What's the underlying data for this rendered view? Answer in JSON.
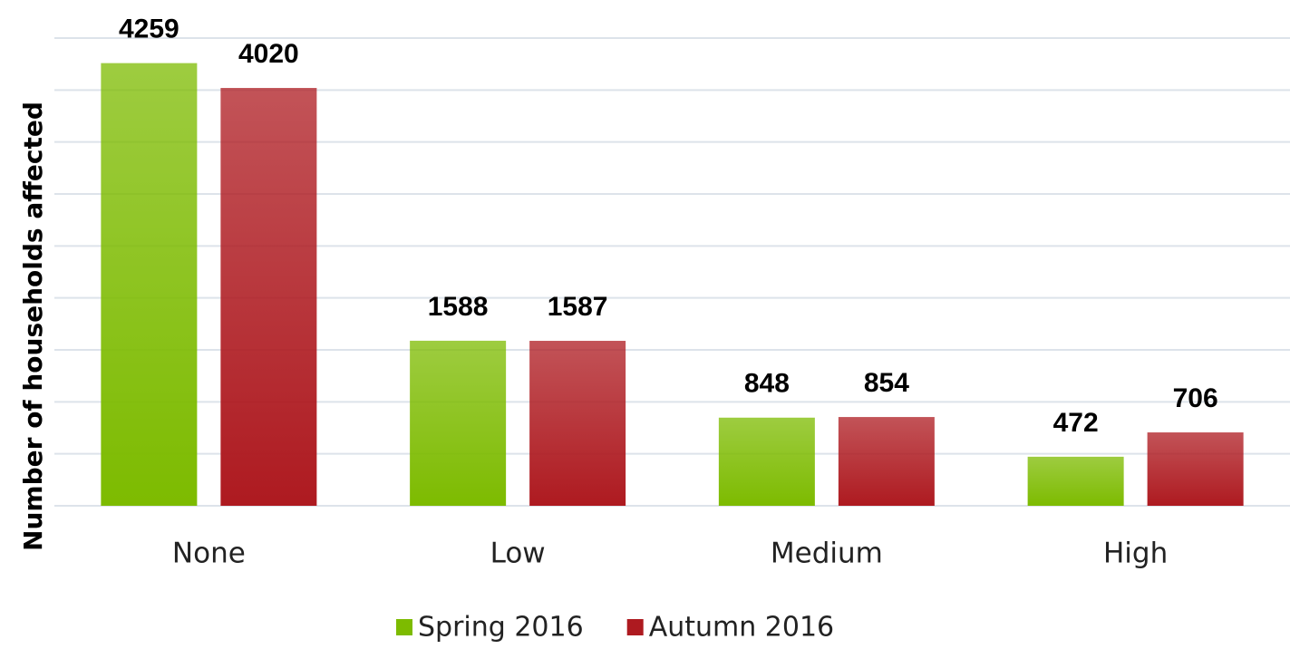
{
  "chart_data": {
    "type": "bar",
    "y_label": "Number of households affected",
    "categories": [
      "None",
      "Low",
      "Medium",
      "High"
    ],
    "series": [
      {
        "name": "Spring 2016",
        "color": "#7dbb00",
        "values": [
          4259,
          1588,
          848,
          472
        ]
      },
      {
        "name": "Autumn 2016",
        "color": "#ae1a20",
        "values": [
          4020,
          1587,
          854,
          706
        ]
      }
    ],
    "ylim": [
      0,
      4500
    ],
    "yticks": [
      0,
      500,
      1000,
      1500,
      2000,
      2500,
      3000,
      3500,
      4000,
      4500
    ],
    "grid": true,
    "tick_labels": false,
    "legend": "bottom"
  }
}
